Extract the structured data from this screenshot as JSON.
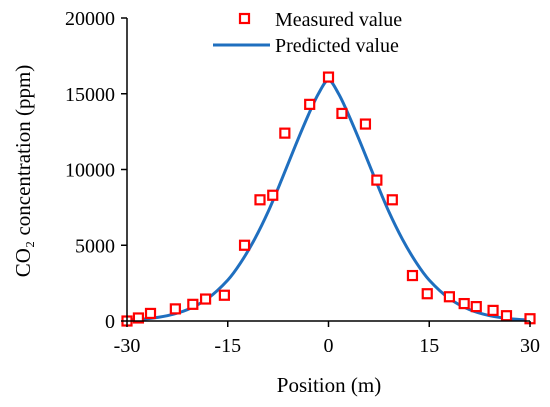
{
  "chart_data": {
    "type": "scatter",
    "xlabel": "Position (m)",
    "ylabel": "CO₂ concentration (ppm)",
    "xlim": [
      -30,
      30
    ],
    "ylim": [
      0,
      20000
    ],
    "x_ticks": [
      "-30",
      "-15",
      "0",
      "15",
      "30"
    ],
    "y_ticks": [
      "0",
      "5000",
      "10000",
      "15000",
      "20000"
    ],
    "grid": false,
    "legend_position": "top-center",
    "colors": {
      "measured": "#ff0000",
      "predicted": "#1f6fbf",
      "axis": "#000000"
    },
    "series": [
      {
        "name": "Measured value",
        "kind": "scatter",
        "marker": "hollow-square",
        "points": [
          {
            "x": -30,
            "y": 0
          },
          {
            "x": -28.3,
            "y": 200
          },
          {
            "x": -26.5,
            "y": 500
          },
          {
            "x": -22.8,
            "y": 800
          },
          {
            "x": -20.2,
            "y": 1100
          },
          {
            "x": -18.3,
            "y": 1450
          },
          {
            "x": -15.5,
            "y": 1700
          },
          {
            "x": -12.5,
            "y": 5000
          },
          {
            "x": -10.2,
            "y": 8000
          },
          {
            "x": -8.3,
            "y": 8300
          },
          {
            "x": -6.5,
            "y": 12400
          },
          {
            "x": -2.8,
            "y": 14300
          },
          {
            "x": 0,
            "y": 16100
          },
          {
            "x": 2.0,
            "y": 13700
          },
          {
            "x": 5.5,
            "y": 13000
          },
          {
            "x": 7.2,
            "y": 9300
          },
          {
            "x": 9.5,
            "y": 8000
          },
          {
            "x": 12.5,
            "y": 3000
          },
          {
            "x": 14.7,
            "y": 1800
          },
          {
            "x": 18.0,
            "y": 1600
          },
          {
            "x": 20.2,
            "y": 1150
          },
          {
            "x": 22.0,
            "y": 950
          },
          {
            "x": 24.5,
            "y": 700
          },
          {
            "x": 26.5,
            "y": 350
          },
          {
            "x": 30,
            "y": 150
          }
        ]
      },
      {
        "name": "Predicted value",
        "kind": "line",
        "points": [
          {
            "x": -30,
            "y": 60
          },
          {
            "x": -27,
            "y": 150
          },
          {
            "x": -24,
            "y": 350
          },
          {
            "x": -21,
            "y": 750
          },
          {
            "x": -18,
            "y": 1480
          },
          {
            "x": -15,
            "y": 2700
          },
          {
            "x": -13,
            "y": 3900
          },
          {
            "x": -11,
            "y": 5400
          },
          {
            "x": -9,
            "y": 7200
          },
          {
            "x": -7,
            "y": 9300
          },
          {
            "x": -5,
            "y": 11500
          },
          {
            "x": -3,
            "y": 13600
          },
          {
            "x": -1.5,
            "y": 15000
          },
          {
            "x": 0,
            "y": 15900
          },
          {
            "x": 1.5,
            "y": 15000
          },
          {
            "x": 3,
            "y": 13600
          },
          {
            "x": 5,
            "y": 11500
          },
          {
            "x": 7,
            "y": 9300
          },
          {
            "x": 9,
            "y": 7200
          },
          {
            "x": 11,
            "y": 5400
          },
          {
            "x": 13,
            "y": 3900
          },
          {
            "x": 15,
            "y": 2700
          },
          {
            "x": 18,
            "y": 1480
          },
          {
            "x": 21,
            "y": 750
          },
          {
            "x": 24,
            "y": 350
          },
          {
            "x": 27,
            "y": 150
          },
          {
            "x": 30,
            "y": 60
          }
        ]
      }
    ]
  }
}
